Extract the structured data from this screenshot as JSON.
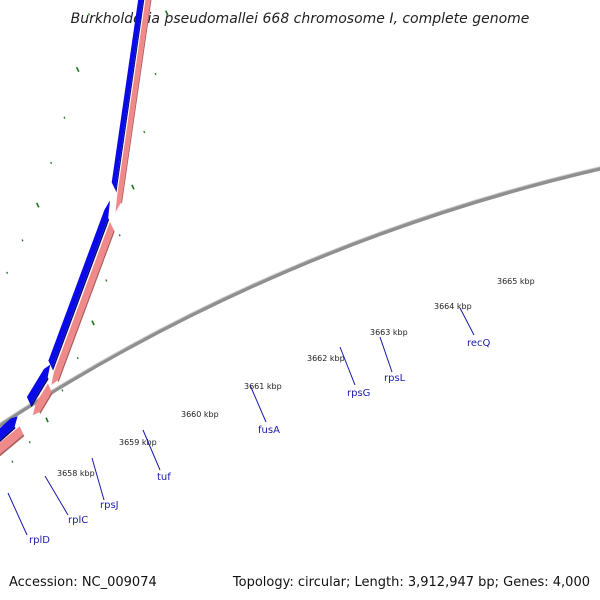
{
  "title": "Burkholderia pseudomallei 668 chromosome I, complete genome",
  "accession": "Accession: NC_009074",
  "summary": "Topology: circular; Length: 3,912,947 bp; Genes: 4,000",
  "kbp_marks": [
    {
      "label": "3658 kbp"
    },
    {
      "label": "3659 kbp"
    },
    {
      "label": "3660 kbp"
    },
    {
      "label": "3661 kbp"
    },
    {
      "label": "3662 kbp"
    },
    {
      "label": "3663 kbp"
    },
    {
      "label": "3664 kbp"
    },
    {
      "label": "3665 kbp"
    }
  ],
  "gene_labels": [
    {
      "name": "rplD"
    },
    {
      "name": "rplC"
    },
    {
      "name": "rpsJ"
    },
    {
      "name": "tuf"
    },
    {
      "name": "fusA"
    },
    {
      "name": "rpsG"
    },
    {
      "name": "rpsL"
    },
    {
      "name": "recQ"
    }
  ],
  "colors": {
    "backbone": "#8f8f8f",
    "forward_gene": "#0a0ae8",
    "reverse_rna": "#f08a8a",
    "reverse_pink": "#f0189a",
    "reverse_orange": "#ff9a00",
    "gc_tick": "#1e7a1e",
    "label_text": "#1a1aa8"
  }
}
